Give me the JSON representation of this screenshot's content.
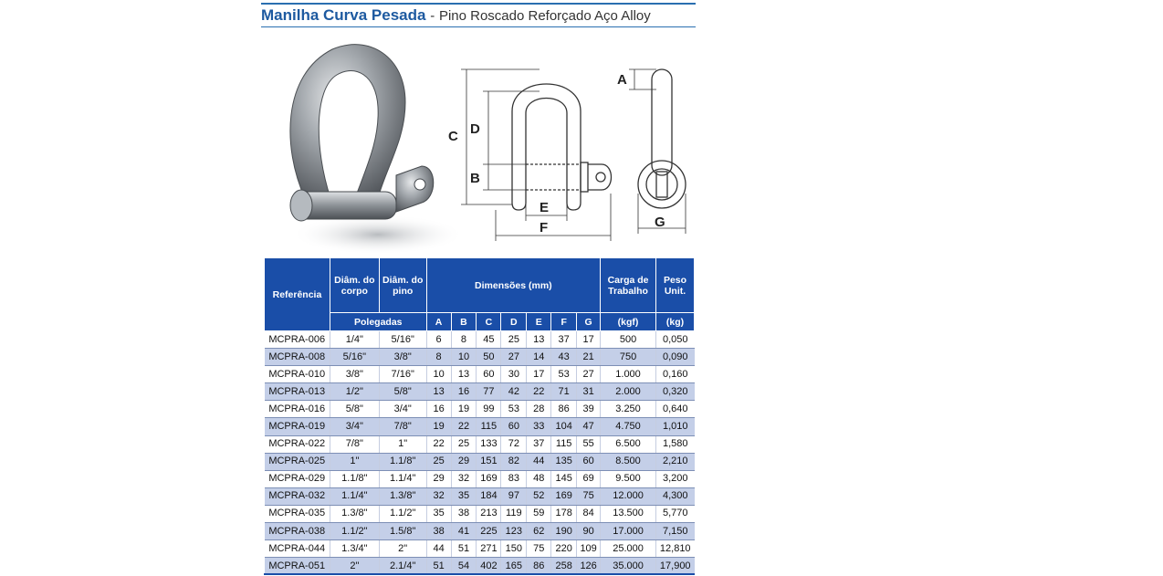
{
  "header": {
    "title": "Manilha Curva Pesada",
    "separator": "-",
    "subtitle": "Pino Roscado Reforçado Aço Alloy"
  },
  "diagram": {
    "labels": [
      "A",
      "B",
      "C",
      "D",
      "E",
      "F",
      "G"
    ]
  },
  "colors": {
    "accent": "#1a4ea8",
    "title": "#1e5aa0",
    "row_alt": "#c4cfe8"
  },
  "table": {
    "headers": {
      "referencia": "Referência",
      "diam_corpo": "Diâm. do corpo",
      "diam_pino": "Diâm. do pino",
      "dimensoes": "Dimensões (mm)",
      "carga": "Carga de Trabalho",
      "peso": "Peso Unit.",
      "polegadas": "Polegadas",
      "A": "A",
      "B": "B",
      "C": "C",
      "D": "D",
      "E": "E",
      "F": "F",
      "G": "G",
      "kgf": "(kgf)",
      "kg": "(kg)"
    },
    "rows": [
      [
        "MCPRA-006",
        "1/4\"",
        "5/16\"",
        "6",
        "8",
        "45",
        "25",
        "13",
        "37",
        "17",
        "500",
        "0,050"
      ],
      [
        "MCPRA-008",
        "5/16\"",
        "3/8\"",
        "8",
        "10",
        "50",
        "27",
        "14",
        "43",
        "21",
        "750",
        "0,090"
      ],
      [
        "MCPRA-010",
        "3/8\"",
        "7/16\"",
        "10",
        "13",
        "60",
        "30",
        "17",
        "53",
        "27",
        "1.000",
        "0,160"
      ],
      [
        "MCPRA-013",
        "1/2\"",
        "5/8\"",
        "13",
        "16",
        "77",
        "42",
        "22",
        "71",
        "31",
        "2.000",
        "0,320"
      ],
      [
        "MCPRA-016",
        "5/8\"",
        "3/4\"",
        "16",
        "19",
        "99",
        "53",
        "28",
        "86",
        "39",
        "3.250",
        "0,640"
      ],
      [
        "MCPRA-019",
        "3/4\"",
        "7/8\"",
        "19",
        "22",
        "115",
        "60",
        "33",
        "104",
        "47",
        "4.750",
        "1,010"
      ],
      [
        "MCPRA-022",
        "7/8\"",
        "1\"",
        "22",
        "25",
        "133",
        "72",
        "37",
        "115",
        "55",
        "6.500",
        "1,580"
      ],
      [
        "MCPRA-025",
        "1\"",
        "1.1/8\"",
        "25",
        "29",
        "151",
        "82",
        "44",
        "135",
        "60",
        "8.500",
        "2,210"
      ],
      [
        "MCPRA-029",
        "1.1/8\"",
        "1.1/4\"",
        "29",
        "32",
        "169",
        "83",
        "48",
        "145",
        "69",
        "9.500",
        "3,200"
      ],
      [
        "MCPRA-032",
        "1.1/4\"",
        "1.3/8\"",
        "32",
        "35",
        "184",
        "97",
        "52",
        "169",
        "75",
        "12.000",
        "4,300"
      ],
      [
        "MCPRA-035",
        "1.3/8\"",
        "1.1/2\"",
        "35",
        "38",
        "213",
        "119",
        "59",
        "178",
        "84",
        "13.500",
        "5,770"
      ],
      [
        "MCPRA-038",
        "1.1/2\"",
        "1.5/8\"",
        "38",
        "41",
        "225",
        "123",
        "62",
        "190",
        "90",
        "17.000",
        "7,150"
      ],
      [
        "MCPRA-044",
        "1.3/4\"",
        "2\"",
        "44",
        "51",
        "271",
        "150",
        "75",
        "220",
        "109",
        "25.000",
        "12,810"
      ],
      [
        "MCPRA-051",
        "2\"",
        "2.1/4\"",
        "51",
        "54",
        "402",
        "165",
        "86",
        "258",
        "126",
        "35.000",
        "17,900"
      ]
    ]
  }
}
